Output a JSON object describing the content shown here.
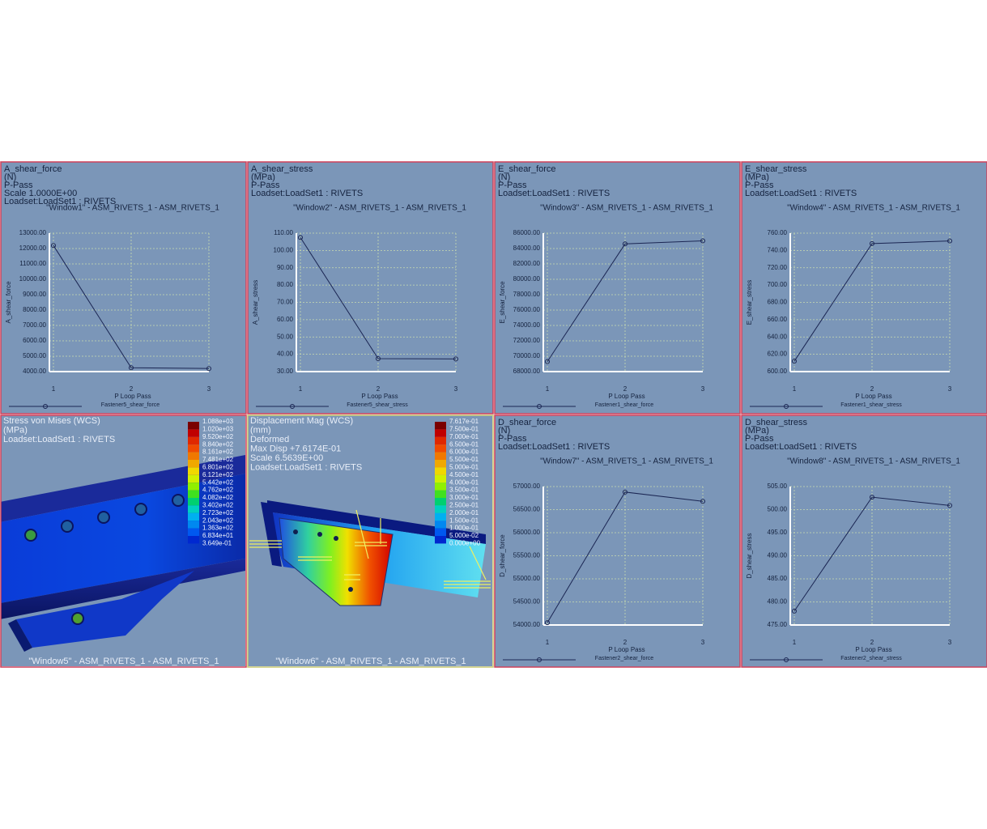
{
  "chart_data": [
    {
      "type": "line",
      "header": [
        "A_shear_force",
        "(N)",
        "P-Pass",
        "Scale 1.0000E+00",
        "Loadset:LoadSet1 : RIVETS"
      ],
      "title": "\"Window1\" - ASM_RIVETS_1 - ASM_RIVETS_1",
      "x_label": "P Loop Pass",
      "y_label": "A_shear_force",
      "x": [
        1,
        2,
        3
      ],
      "xlim": [
        1,
        3
      ],
      "xticks": [
        1,
        2,
        3
      ],
      "ylim": [
        4000,
        13000
      ],
      "yticks": [
        {
          "value": 4000,
          "label": "4000.00"
        },
        {
          "value": 5000,
          "label": "5000.00"
        },
        {
          "value": 6000,
          "label": "6000.00"
        },
        {
          "value": 7000,
          "label": "7000.00"
        },
        {
          "value": 8000,
          "label": "8000.00"
        },
        {
          "value": 9000,
          "label": "9000.00"
        },
        {
          "value": 10000,
          "label": "10000.00"
        },
        {
          "value": 11000,
          "label": "11000.00"
        },
        {
          "value": 12000,
          "label": "12000.00"
        },
        {
          "value": 13000,
          "label": "13000.00"
        }
      ],
      "grid": true,
      "series": [
        {
          "name": "Fastener5_shear_force",
          "color": "#1b2653",
          "values": [
            12200,
            4250,
            4200
          ]
        }
      ]
    },
    {
      "type": "line",
      "header": [
        "A_shear_stress",
        "(MPa)",
        "P-Pass",
        "Loadset:LoadSet1 : RIVETS"
      ],
      "title": "\"Window2\" - ASM_RIVETS_1 - ASM_RIVETS_1",
      "x_label": "P Loop Pass",
      "y_label": "A_shear_stress",
      "x": [
        1,
        2,
        3
      ],
      "xlim": [
        1,
        3
      ],
      "xticks": [
        1,
        2,
        3
      ],
      "ylim": [
        30,
        110
      ],
      "yticks": [
        {
          "value": 30,
          "label": "30.00"
        },
        {
          "value": 40,
          "label": "40.00"
        },
        {
          "value": 50,
          "label": "50.00"
        },
        {
          "value": 60,
          "label": "60.00"
        },
        {
          "value": 70,
          "label": "70.00"
        },
        {
          "value": 80,
          "label": "80.00"
        },
        {
          "value": 90,
          "label": "90.00"
        },
        {
          "value": 100,
          "label": "100.00"
        },
        {
          "value": 110,
          "label": "110.00"
        }
      ],
      "grid": true,
      "series": [
        {
          "name": "Fastener5_shear_stress",
          "color": "#1b2653",
          "values": [
            107.5,
            37.5,
            37.3
          ]
        }
      ]
    },
    {
      "type": "line",
      "header": [
        "E_shear_force",
        "(N)",
        "P-Pass",
        "Loadset:LoadSet1 : RIVETS"
      ],
      "title": "\"Window3\" - ASM_RIVETS_1 - ASM_RIVETS_1",
      "x_label": "P Loop Pass",
      "y_label": "E_shear_force",
      "x": [
        1,
        2,
        3
      ],
      "xlim": [
        1,
        3
      ],
      "xticks": [
        1,
        2,
        3
      ],
      "ylim": [
        68000,
        86000
      ],
      "yticks": [
        {
          "value": 68000,
          "label": "68000.00"
        },
        {
          "value": 70000,
          "label": "70000.00"
        },
        {
          "value": 72000,
          "label": "72000.00"
        },
        {
          "value": 74000,
          "label": "74000.00"
        },
        {
          "value": 76000,
          "label": "76000.00"
        },
        {
          "value": 78000,
          "label": "78000.00"
        },
        {
          "value": 80000,
          "label": "80000.00"
        },
        {
          "value": 82000,
          "label": "82000.00"
        },
        {
          "value": 84000,
          "label": "84000.00"
        },
        {
          "value": 86000,
          "label": "86000.00"
        }
      ],
      "grid": true,
      "series": [
        {
          "name": "Fastener1_shear_force",
          "color": "#1b2653",
          "values": [
            69300,
            84600,
            85000
          ]
        }
      ]
    },
    {
      "type": "line",
      "header": [
        "E_shear_stress",
        "(MPa)",
        "P-Pass",
        "Loadset:LoadSet1 : RIVETS"
      ],
      "title": "\"Window4\" - ASM_RIVETS_1 - ASM_RIVETS_1",
      "x_label": "P Loop Pass",
      "y_label": "E_shear_stress",
      "x": [
        1,
        2,
        3
      ],
      "xlim": [
        1,
        3
      ],
      "xticks": [
        1,
        2,
        3
      ],
      "ylim": [
        600,
        760
      ],
      "yticks": [
        {
          "value": 600,
          "label": "600.00"
        },
        {
          "value": 620,
          "label": "620.00"
        },
        {
          "value": 640,
          "label": "640.00"
        },
        {
          "value": 660,
          "label": "660.00"
        },
        {
          "value": 680,
          "label": "680.00"
        },
        {
          "value": 700,
          "label": "700.00"
        },
        {
          "value": 720,
          "label": "720.00"
        },
        {
          "value": 740,
          "label": "740.00"
        },
        {
          "value": 760,
          "label": "760.00"
        }
      ],
      "grid": true,
      "series": [
        {
          "name": "Fastener1_shear_stress",
          "color": "#1b2653",
          "values": [
            612,
            748,
            751
          ]
        }
      ]
    },
    {
      "type": "line",
      "header": [
        "D_shear_force",
        "(N)",
        "P-Pass",
        "Loadset:LoadSet1 : RIVETS"
      ],
      "title": "\"Window7\" - ASM_RIVETS_1 - ASM_RIVETS_1",
      "x_label": "P Loop Pass",
      "y_label": "D_shear_force",
      "x": [
        1,
        2,
        3
      ],
      "xlim": [
        1,
        3
      ],
      "xticks": [
        1,
        2,
        3
      ],
      "ylim": [
        54000,
        57000
      ],
      "yticks": [
        {
          "value": 54000,
          "label": "54000.00"
        },
        {
          "value": 54500,
          "label": "54500.00"
        },
        {
          "value": 55000,
          "label": "55000.00"
        },
        {
          "value": 55500,
          "label": "55500.00"
        },
        {
          "value": 56000,
          "label": "56000.00"
        },
        {
          "value": 56500,
          "label": "56500.00"
        },
        {
          "value": 57000,
          "label": "57000.00"
        }
      ],
      "grid": true,
      "series": [
        {
          "name": "Fastener2_shear_force",
          "color": "#1b2653",
          "values": [
            54050,
            56880,
            56680
          ]
        }
      ]
    },
    {
      "type": "line",
      "header": [
        "D_shear_stress",
        "(MPa)",
        "P-Pass",
        "Loadset:LoadSet1 : RIVETS"
      ],
      "title": "\"Window8\" - ASM_RIVETS_1 - ASM_RIVETS_1",
      "x_label": "P Loop Pass",
      "y_label": "D_shear_stress",
      "x": [
        1,
        2,
        3
      ],
      "xlim": [
        1,
        3
      ],
      "xticks": [
        1,
        2,
        3
      ],
      "ylim": [
        475,
        505
      ],
      "yticks": [
        {
          "value": 475,
          "label": "475.00"
        },
        {
          "value": 480,
          "label": "480.00"
        },
        {
          "value": 485,
          "label": "485.00"
        },
        {
          "value": 490,
          "label": "490.00"
        },
        {
          "value": 495,
          "label": "495.00"
        },
        {
          "value": 500,
          "label": "500.00"
        },
        {
          "value": 505,
          "label": "505.00"
        }
      ],
      "grid": true,
      "series": [
        {
          "name": "Fastener2_shear_stress",
          "color": "#1b2653",
          "values": [
            478,
            502.7,
            500.9
          ]
        }
      ]
    }
  ],
  "fringe_windows": [
    {
      "header": [
        "Stress von Mises (WCS)",
        "(MPa)",
        "Loadset:LoadSet1 :  RIVETS"
      ],
      "legend_labels": [
        "1.088e+03",
        "1.020e+03",
        "9.520e+02",
        "8.840e+02",
        "8.161e+02",
        "7.481e+02",
        "6.801e+02",
        "6.121e+02",
        "5.442e+02",
        "4.762e+02",
        "4.082e+02",
        "3.402e+02",
        "2.723e+02",
        "2.043e+02",
        "1.363e+02",
        "6.834e+01",
        "3.649e-01"
      ],
      "title": "\"Window5\" - ASM_RIVETS_1 - ASM_RIVETS_1"
    },
    {
      "header": [
        "Displacement Mag (WCS)",
        "(mm)",
        "Deformed",
        "Max Disp  +7.6174E-01",
        "Scale  6.5639E+00",
        "Loadset:LoadSet1 :  RIVETS"
      ],
      "legend_labels": [
        "7.617e-01",
        "7.500e-01",
        "7.000e-01",
        "6.500e-01",
        "6.000e-01",
        "5.500e-01",
        "5.000e-01",
        "4.500e-01",
        "4.000e-01",
        "3.500e-01",
        "3.000e-01",
        "2.500e-01",
        "2.000e-01",
        "1.500e-01",
        "1.000e-01",
        "5.000e-02",
        "0.000e+00"
      ],
      "title": "\"Window6\" - ASM_RIVETS_1 - ASM_RIVETS_1"
    }
  ]
}
